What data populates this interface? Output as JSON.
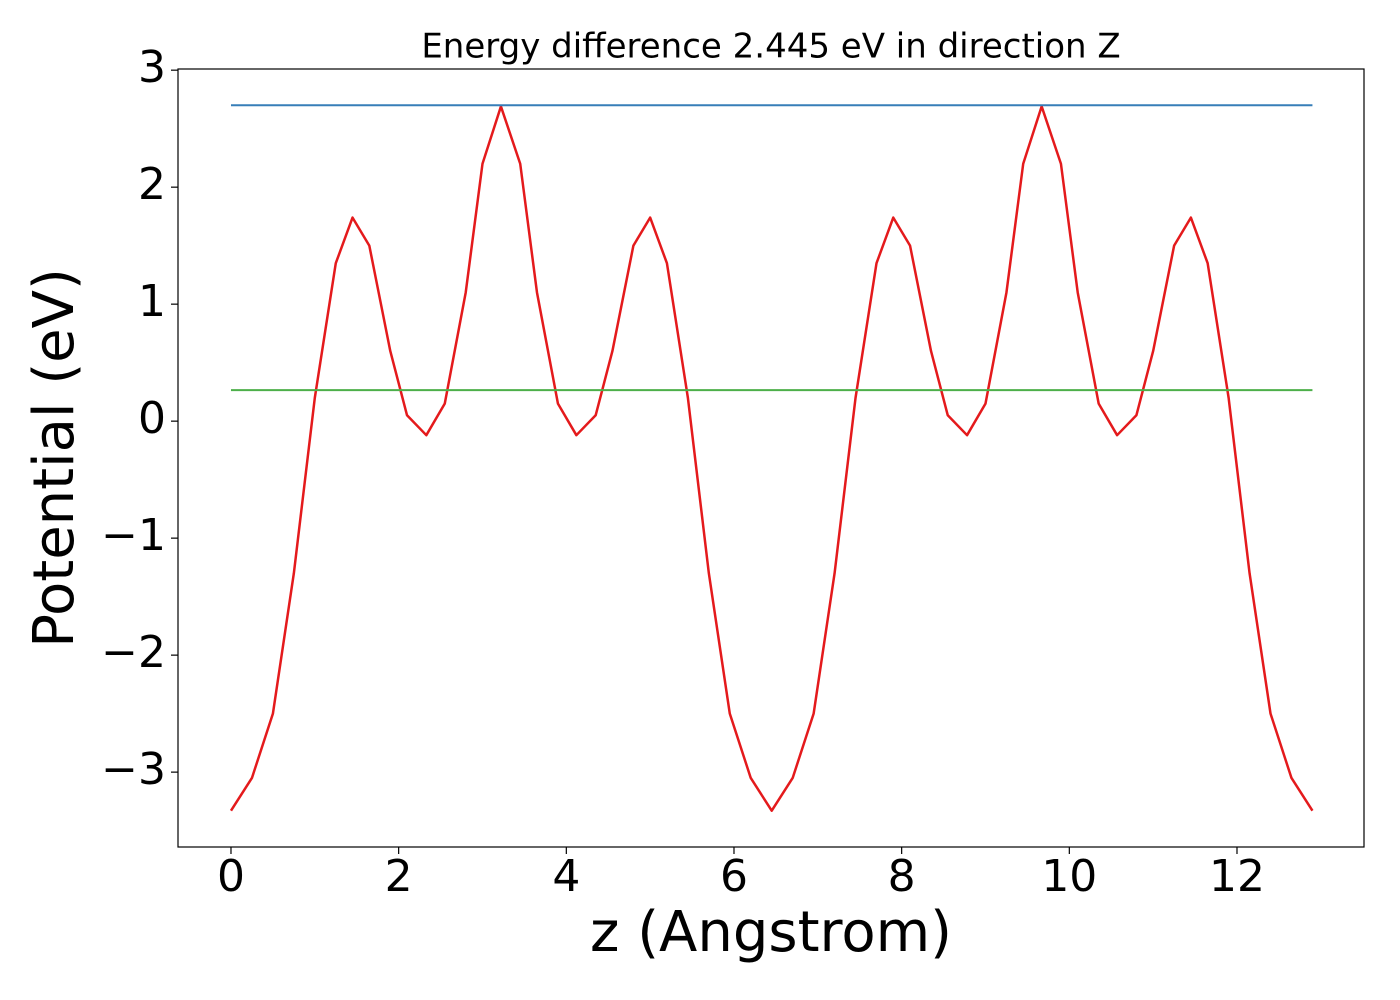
{
  "chart_data": {
    "type": "line",
    "title": "Energy difference 2.445 eV in direction Z",
    "xlabel": "z (Angstrom)",
    "ylabel": "Potential (eV)",
    "xlim": [
      -0.632,
      13.515
    ],
    "ylim": [
      -3.64,
      3.01
    ],
    "xticks": [
      0,
      2,
      4,
      6,
      8,
      10,
      12
    ],
    "yticks": [
      {
        "value": -3,
        "label": "−3"
      },
      {
        "value": -2,
        "label": "−2"
      },
      {
        "value": -1,
        "label": "−1"
      },
      0,
      1,
      2,
      3
    ],
    "series": [
      {
        "color": "#e41a1c",
        "x": [
          0,
          0.25,
          0.5,
          0.75,
          1.0,
          1.25,
          1.45,
          1.65,
          1.9,
          2.1,
          2.33,
          2.55,
          2.8,
          3.0,
          3.22,
          3.45,
          3.65,
          3.9,
          4.12,
          4.35,
          4.55,
          4.8,
          5.0,
          5.2,
          5.45,
          5.7,
          5.95,
          6.2,
          6.45,
          6.7,
          6.95,
          7.2,
          7.45,
          7.7,
          7.9,
          8.1,
          8.35,
          8.55,
          8.78,
          9.0,
          9.25,
          9.45,
          9.67,
          9.9,
          10.1,
          10.35,
          10.57,
          10.8,
          11.0,
          11.25,
          11.45,
          11.65,
          11.9,
          12.15,
          12.4,
          12.65,
          12.9
        ],
        "values": [
          -3.33,
          -3.05,
          -2.5,
          -1.3,
          0.2,
          1.35,
          1.74,
          1.5,
          0.6,
          0.05,
          -0.12,
          0.15,
          1.1,
          2.2,
          2.69,
          2.2,
          1.1,
          0.15,
          -0.12,
          0.05,
          0.6,
          1.5,
          1.74,
          1.35,
          0.2,
          -1.3,
          -2.5,
          -3.05,
          -3.33,
          -3.05,
          -2.5,
          -1.3,
          0.2,
          1.35,
          1.74,
          1.5,
          0.6,
          0.05,
          -0.12,
          0.15,
          1.1,
          2.2,
          2.69,
          2.2,
          1.1,
          0.15,
          -0.12,
          0.05,
          0.6,
          1.5,
          1.74,
          1.35,
          0.2,
          -1.3,
          -2.5,
          -3.05,
          -3.33
        ]
      },
      {
        "color": "#377eb8",
        "x": [
          0,
          12.9
        ],
        "values": [
          2.7,
          2.7
        ]
      },
      {
        "color": "#4daf4a",
        "x": [
          0,
          12.9
        ],
        "values": [
          0.265,
          0.265
        ]
      }
    ]
  }
}
